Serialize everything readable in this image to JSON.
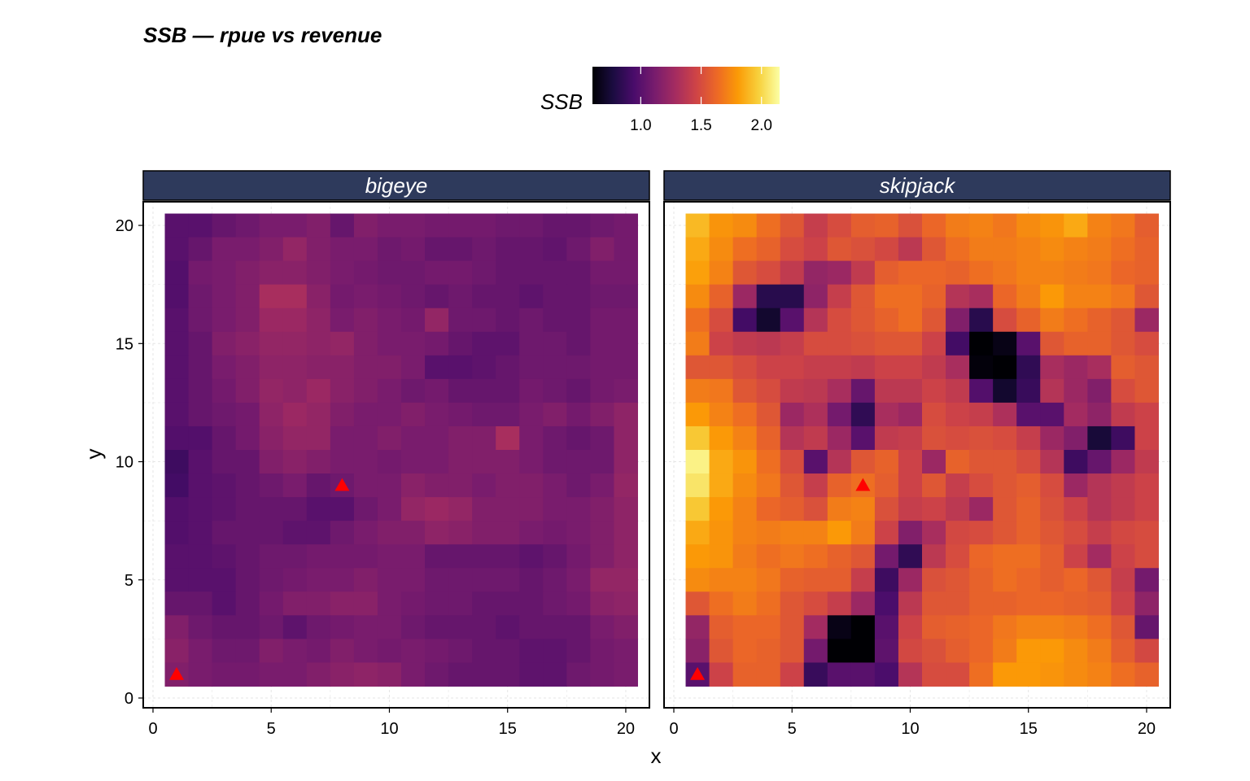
{
  "chart_data": {
    "type": "heatmap",
    "title": "SSB — rpue vs revenue",
    "xlabel": "x",
    "ylabel": "y",
    "xlim": [
      0,
      21
    ],
    "ylim": [
      0,
      21
    ],
    "x_ticks": [
      0,
      5,
      10,
      15,
      20
    ],
    "y_ticks": [
      0,
      5,
      10,
      15,
      20
    ],
    "grid": true,
    "legend": {
      "title": "SSB",
      "placement": "top",
      "range": [
        0.6,
        2.15
      ],
      "ticks": [
        1.0,
        1.5,
        2.0
      ],
      "tick_labels": [
        "1.0",
        "1.5",
        "2.0"
      ],
      "palette": "inferno",
      "colors": [
        "#000004",
        "#1b0c41",
        "#4a0c6b",
        "#781c6d",
        "#a52c60",
        "#cf4446",
        "#ed6925",
        "#fb9b06",
        "#f7d13d",
        "#fcffa4"
      ]
    },
    "grid_x": [
      1,
      20
    ],
    "grid_y": [
      1,
      20
    ],
    "marker": {
      "shape": "triangle",
      "color": "#ff0000"
    },
    "panels": [
      {
        "name": "bigeye",
        "rows_top_to_bottom": [
          [
            1.0,
            1.0,
            1.05,
            1.08,
            1.12,
            1.12,
            1.15,
            1.05,
            1.15,
            1.12,
            1.12,
            1.1,
            1.1,
            1.1,
            1.08,
            1.08,
            1.05,
            1.05,
            1.08,
            1.1
          ],
          [
            1.0,
            1.05,
            1.12,
            1.12,
            1.15,
            1.22,
            1.15,
            1.12,
            1.12,
            1.08,
            1.1,
            1.05,
            1.05,
            1.08,
            1.05,
            1.05,
            1.03,
            1.08,
            1.15,
            1.1
          ],
          [
            0.98,
            1.1,
            1.12,
            1.15,
            1.18,
            1.18,
            1.15,
            1.12,
            1.1,
            1.08,
            1.08,
            1.1,
            1.1,
            1.08,
            1.05,
            1.05,
            1.05,
            1.05,
            1.1,
            1.1
          ],
          [
            0.98,
            1.08,
            1.12,
            1.15,
            1.3,
            1.3,
            1.18,
            1.1,
            1.12,
            1.1,
            1.08,
            1.05,
            1.08,
            1.05,
            1.05,
            1.02,
            1.05,
            1.05,
            1.08,
            1.08
          ],
          [
            1.0,
            1.08,
            1.12,
            1.15,
            1.25,
            1.25,
            1.2,
            1.12,
            1.15,
            1.12,
            1.1,
            1.22,
            1.08,
            1.08,
            1.05,
            1.08,
            1.05,
            1.05,
            1.1,
            1.1
          ],
          [
            1.0,
            1.05,
            1.15,
            1.18,
            1.22,
            1.22,
            1.2,
            1.22,
            1.15,
            1.12,
            1.12,
            1.1,
            1.05,
            1.02,
            1.02,
            1.08,
            1.08,
            1.05,
            1.1,
            1.1
          ],
          [
            1.0,
            1.05,
            1.12,
            1.15,
            1.2,
            1.2,
            1.18,
            1.18,
            1.15,
            1.15,
            1.12,
            1.0,
            1.0,
            1.02,
            1.05,
            1.08,
            1.08,
            1.08,
            1.1,
            1.1
          ],
          [
            1.0,
            1.05,
            1.1,
            1.15,
            1.22,
            1.2,
            1.25,
            1.18,
            1.15,
            1.12,
            1.08,
            1.1,
            1.05,
            1.05,
            1.05,
            1.1,
            1.08,
            1.05,
            1.1,
            1.12
          ],
          [
            1.0,
            1.05,
            1.08,
            1.1,
            1.2,
            1.25,
            1.22,
            1.15,
            1.12,
            1.12,
            1.15,
            1.12,
            1.1,
            1.08,
            1.08,
            1.12,
            1.15,
            1.1,
            1.15,
            1.2
          ],
          [
            0.98,
            0.98,
            1.05,
            1.1,
            1.18,
            1.22,
            1.22,
            1.12,
            1.12,
            1.15,
            1.12,
            1.12,
            1.15,
            1.15,
            1.3,
            1.12,
            1.08,
            1.05,
            1.08,
            1.2
          ],
          [
            0.9,
            1.0,
            1.05,
            1.05,
            1.15,
            1.18,
            1.15,
            1.12,
            1.12,
            1.1,
            1.12,
            1.12,
            1.15,
            1.15,
            1.15,
            1.12,
            1.08,
            1.08,
            1.08,
            1.2
          ],
          [
            0.92,
            1.0,
            1.02,
            1.05,
            1.08,
            1.12,
            1.05,
            1.08,
            1.12,
            1.12,
            1.18,
            1.15,
            1.15,
            1.12,
            1.15,
            1.15,
            1.12,
            1.08,
            1.12,
            1.22
          ],
          [
            0.98,
            1.0,
            1.02,
            1.05,
            1.05,
            1.05,
            1.0,
            1.0,
            1.08,
            1.12,
            1.22,
            1.25,
            1.22,
            1.15,
            1.15,
            1.15,
            1.12,
            1.12,
            1.15,
            1.2
          ],
          [
            0.98,
            1.0,
            1.05,
            1.05,
            1.05,
            1.02,
            1.02,
            1.08,
            1.12,
            1.15,
            1.15,
            1.2,
            1.18,
            1.15,
            1.15,
            1.12,
            1.1,
            1.12,
            1.15,
            1.2
          ],
          [
            1.0,
            1.0,
            1.02,
            1.05,
            1.08,
            1.08,
            1.1,
            1.1,
            1.1,
            1.12,
            1.12,
            1.05,
            1.05,
            1.05,
            1.05,
            1.02,
            1.05,
            1.1,
            1.15,
            1.2
          ],
          [
            1.0,
            1.0,
            1.0,
            1.05,
            1.08,
            1.1,
            1.12,
            1.12,
            1.15,
            1.12,
            1.12,
            1.08,
            1.08,
            1.08,
            1.08,
            1.05,
            1.08,
            1.12,
            1.22,
            1.22
          ],
          [
            1.05,
            1.05,
            1.0,
            1.05,
            1.1,
            1.15,
            1.15,
            1.18,
            1.18,
            1.12,
            1.1,
            1.08,
            1.08,
            1.05,
            1.05,
            1.05,
            1.08,
            1.1,
            1.18,
            1.2
          ],
          [
            1.15,
            1.08,
            1.05,
            1.05,
            1.08,
            1.02,
            1.08,
            1.1,
            1.12,
            1.12,
            1.08,
            1.05,
            1.05,
            1.05,
            1.02,
            1.05,
            1.05,
            1.05,
            1.12,
            1.15
          ],
          [
            1.18,
            1.12,
            1.08,
            1.08,
            1.15,
            1.12,
            1.1,
            1.15,
            1.12,
            1.1,
            1.12,
            1.1,
            1.08,
            1.05,
            1.05,
            1.02,
            1.02,
            1.05,
            1.1,
            1.12
          ],
          [
            1.15,
            1.12,
            1.1,
            1.1,
            1.12,
            1.12,
            1.15,
            1.18,
            1.2,
            1.18,
            1.12,
            1.08,
            1.05,
            1.05,
            1.05,
            1.02,
            1.02,
            1.08,
            1.1,
            1.12
          ]
        ],
        "marker_points": [
          {
            "x": 1,
            "y": 1
          },
          {
            "x": 8,
            "y": 9
          }
        ]
      },
      {
        "name": "skipjack",
        "rows_top_to_bottom": [
          [
            1.9,
            1.78,
            1.75,
            1.65,
            1.55,
            1.42,
            1.5,
            1.58,
            1.6,
            1.52,
            1.62,
            1.7,
            1.72,
            1.68,
            1.75,
            1.78,
            1.85,
            1.72,
            1.68,
            1.58
          ],
          [
            1.85,
            1.75,
            1.65,
            1.6,
            1.5,
            1.45,
            1.55,
            1.52,
            1.48,
            1.38,
            1.55,
            1.65,
            1.7,
            1.7,
            1.72,
            1.75,
            1.72,
            1.7,
            1.65,
            1.6
          ],
          [
            1.82,
            1.72,
            1.55,
            1.5,
            1.4,
            1.22,
            1.25,
            1.4,
            1.58,
            1.62,
            1.62,
            1.6,
            1.65,
            1.68,
            1.72,
            1.72,
            1.7,
            1.68,
            1.62,
            1.6
          ],
          [
            1.75,
            1.6,
            1.25,
            0.82,
            0.82,
            1.2,
            1.42,
            1.55,
            1.65,
            1.65,
            1.6,
            1.35,
            1.3,
            1.62,
            1.7,
            1.8,
            1.72,
            1.72,
            1.68,
            1.55
          ],
          [
            1.65,
            1.5,
            0.92,
            0.72,
            1.0,
            1.35,
            1.5,
            1.55,
            1.6,
            1.65,
            1.55,
            1.15,
            0.82,
            1.5,
            1.6,
            1.7,
            1.65,
            1.6,
            1.55,
            1.25
          ],
          [
            1.7,
            1.45,
            1.4,
            1.38,
            1.42,
            1.5,
            1.5,
            1.52,
            1.55,
            1.55,
            1.45,
            0.92,
            0.55,
            0.65,
            1.0,
            1.55,
            1.6,
            1.6,
            1.55,
            1.5
          ],
          [
            1.55,
            1.55,
            1.5,
            1.45,
            1.45,
            1.42,
            1.42,
            1.4,
            1.45,
            1.45,
            1.4,
            1.3,
            0.62,
            0.45,
            0.85,
            1.3,
            1.25,
            1.3,
            1.58,
            1.55
          ],
          [
            1.7,
            1.68,
            1.55,
            1.5,
            1.4,
            1.38,
            1.3,
            1.05,
            1.38,
            1.38,
            1.45,
            1.4,
            0.98,
            0.72,
            0.88,
            1.35,
            1.25,
            1.15,
            1.5,
            1.55
          ],
          [
            1.8,
            1.72,
            1.65,
            1.55,
            1.25,
            1.32,
            1.1,
            0.85,
            1.3,
            1.25,
            1.5,
            1.45,
            1.42,
            1.32,
            1.0,
            1.0,
            1.28,
            1.2,
            1.4,
            1.45
          ],
          [
            1.95,
            1.8,
            1.72,
            1.6,
            1.35,
            1.4,
            1.25,
            1.0,
            1.4,
            1.42,
            1.52,
            1.5,
            1.52,
            1.5,
            1.42,
            1.25,
            1.15,
            0.75,
            0.9,
            1.45
          ],
          [
            2.1,
            1.85,
            1.78,
            1.65,
            1.5,
            1.0,
            1.35,
            1.55,
            1.6,
            1.45,
            1.25,
            1.6,
            1.55,
            1.55,
            1.5,
            1.35,
            0.9,
            1.05,
            1.25,
            1.4
          ],
          [
            2.05,
            1.85,
            1.75,
            1.68,
            1.55,
            1.42,
            1.6,
            1.65,
            1.58,
            1.45,
            1.55,
            1.42,
            1.5,
            1.55,
            1.58,
            1.5,
            1.25,
            1.35,
            1.4,
            1.45
          ],
          [
            1.95,
            1.8,
            1.72,
            1.62,
            1.58,
            1.52,
            1.7,
            1.72,
            1.52,
            1.42,
            1.45,
            1.38,
            1.25,
            1.55,
            1.6,
            1.52,
            1.45,
            1.35,
            1.4,
            1.45
          ],
          [
            1.85,
            1.78,
            1.72,
            1.7,
            1.72,
            1.72,
            1.8,
            1.7,
            1.45,
            1.15,
            1.3,
            1.48,
            1.5,
            1.55,
            1.6,
            1.55,
            1.5,
            1.42,
            1.48,
            1.5
          ],
          [
            1.8,
            1.78,
            1.7,
            1.65,
            1.68,
            1.65,
            1.6,
            1.55,
            1.1,
            0.85,
            1.38,
            1.5,
            1.62,
            1.65,
            1.65,
            1.58,
            1.45,
            1.28,
            1.45,
            1.5
          ],
          [
            1.75,
            1.72,
            1.72,
            1.68,
            1.6,
            1.58,
            1.58,
            1.42,
            0.9,
            1.25,
            1.52,
            1.55,
            1.6,
            1.65,
            1.62,
            1.58,
            1.62,
            1.55,
            1.42,
            1.1
          ],
          [
            1.55,
            1.65,
            1.7,
            1.65,
            1.55,
            1.5,
            1.42,
            1.25,
            0.95,
            1.38,
            1.55,
            1.55,
            1.6,
            1.6,
            1.62,
            1.62,
            1.6,
            1.58,
            1.45,
            1.2
          ],
          [
            1.22,
            1.58,
            1.62,
            1.62,
            1.55,
            1.28,
            0.65,
            0.55,
            1.0,
            1.45,
            1.58,
            1.6,
            1.62,
            1.68,
            1.72,
            1.72,
            1.7,
            1.65,
            1.55,
            1.05
          ],
          [
            1.18,
            1.55,
            1.62,
            1.6,
            1.55,
            1.1,
            0.5,
            0.5,
            1.02,
            1.48,
            1.52,
            1.58,
            1.62,
            1.7,
            1.8,
            1.8,
            1.75,
            1.7,
            1.58,
            1.48
          ],
          [
            1.0,
            1.45,
            1.6,
            1.6,
            1.45,
            0.88,
            1.0,
            1.0,
            0.95,
            1.35,
            1.5,
            1.5,
            1.65,
            1.8,
            1.8,
            1.78,
            1.75,
            1.72,
            1.65,
            1.6
          ]
        ],
        "marker_points": [
          {
            "x": 1,
            "y": 1
          },
          {
            "x": 8,
            "y": 9
          }
        ]
      }
    ]
  }
}
